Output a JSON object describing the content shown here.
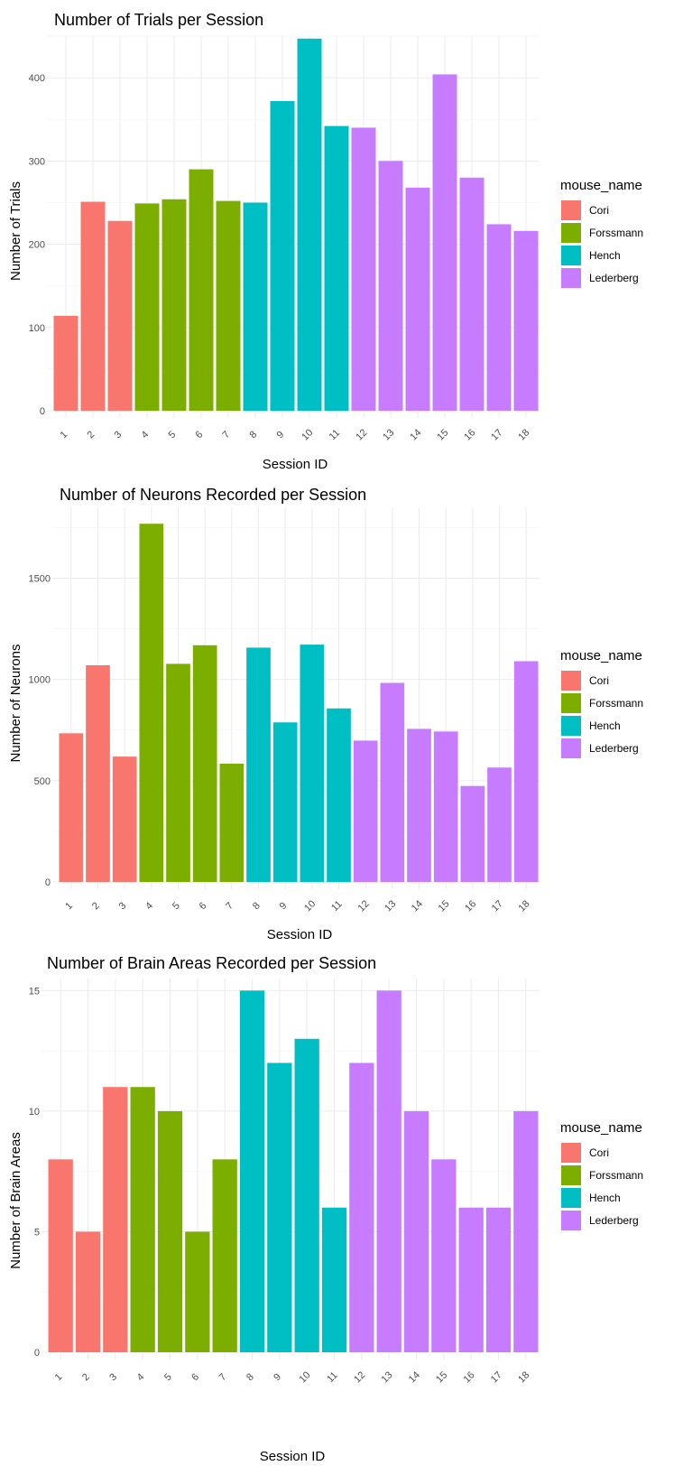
{
  "chart_data": [
    {
      "type": "bar",
      "title": "Number of Trials per Session",
      "xlabel": "Session ID",
      "ylabel": "Number of Trials",
      "categories": [
        "1",
        "2",
        "3",
        "4",
        "5",
        "6",
        "7",
        "8",
        "9",
        "10",
        "11",
        "12",
        "13",
        "14",
        "15",
        "16",
        "17",
        "18"
      ],
      "values": [
        114,
        251,
        228,
        249,
        254,
        290,
        252,
        250,
        372,
        447,
        342,
        340,
        300,
        268,
        404,
        280,
        224,
        216
      ],
      "groups": [
        "Cori",
        "Cori",
        "Cori",
        "Forssmann",
        "Forssmann",
        "Forssmann",
        "Forssmann",
        "Hench",
        "Hench",
        "Hench",
        "Hench",
        "Lederberg",
        "Lederberg",
        "Lederberg",
        "Lederberg",
        "Lederberg",
        "Lederberg",
        "Lederberg"
      ],
      "ylim": [
        0,
        450
      ],
      "yticks": [
        0,
        100,
        200,
        300,
        400
      ],
      "grid": true,
      "legend": {
        "title": "mouse_name",
        "position": "right",
        "entries": [
          {
            "name": "Cori",
            "color": "#F8766D"
          },
          {
            "name": "Forssmann",
            "color": "#7CAE00"
          },
          {
            "name": "Hench",
            "color": "#00BFC4"
          },
          {
            "name": "Lederberg",
            "color": "#C77CFF"
          }
        ]
      }
    },
    {
      "type": "bar",
      "title": "Number of Neurons Recorded per Session",
      "xlabel": "Session ID",
      "ylabel": "Number of Neurons",
      "categories": [
        "1",
        "2",
        "3",
        "4",
        "5",
        "6",
        "7",
        "8",
        "9",
        "10",
        "11",
        "12",
        "13",
        "14",
        "15",
        "16",
        "17",
        "18"
      ],
      "values": [
        734,
        1070,
        619,
        1769,
        1077,
        1169,
        584,
        1157,
        788,
        1172,
        857,
        698,
        983,
        756,
        743,
        474,
        565,
        1090
      ],
      "groups": [
        "Cori",
        "Cori",
        "Cori",
        "Forssmann",
        "Forssmann",
        "Forssmann",
        "Forssmann",
        "Hench",
        "Hench",
        "Hench",
        "Hench",
        "Lederberg",
        "Lederberg",
        "Lederberg",
        "Lederberg",
        "Lederberg",
        "Lederberg",
        "Lederberg"
      ],
      "ylim": [
        0,
        1850
      ],
      "yticks": [
        0,
        500,
        1000,
        1500
      ],
      "grid": true,
      "legend": {
        "title": "mouse_name",
        "position": "right",
        "entries": [
          {
            "name": "Cori",
            "color": "#F8766D"
          },
          {
            "name": "Forssmann",
            "color": "#7CAE00"
          },
          {
            "name": "Hench",
            "color": "#00BFC4"
          },
          {
            "name": "Lederberg",
            "color": "#C77CFF"
          }
        ]
      }
    },
    {
      "type": "bar",
      "title": "Number of Brain Areas Recorded per Session",
      "xlabel": "Session ID",
      "ylabel": "Number of Brain Areas",
      "categories": [
        "1",
        "2",
        "3",
        "4",
        "5",
        "6",
        "7",
        "8",
        "9",
        "10",
        "11",
        "12",
        "13",
        "14",
        "15",
        "16",
        "17",
        "18"
      ],
      "values": [
        8,
        5,
        11,
        11,
        10,
        5,
        8,
        15,
        12,
        13,
        6,
        12,
        15,
        10,
        8,
        6,
        6,
        10
      ],
      "groups": [
        "Cori",
        "Cori",
        "Cori",
        "Forssmann",
        "Forssmann",
        "Forssmann",
        "Forssmann",
        "Hench",
        "Hench",
        "Hench",
        "Hench",
        "Lederberg",
        "Lederberg",
        "Lederberg",
        "Lederberg",
        "Lederberg",
        "Lederberg",
        "Lederberg"
      ],
      "ylim": [
        0,
        15.5
      ],
      "yticks": [
        0,
        5,
        10,
        15
      ],
      "grid": true,
      "legend": {
        "title": "mouse_name",
        "position": "right",
        "entries": [
          {
            "name": "Cori",
            "color": "#F8766D"
          },
          {
            "name": "Forssmann",
            "color": "#7CAE00"
          },
          {
            "name": "Hench",
            "color": "#00BFC4"
          },
          {
            "name": "Lederberg",
            "color": "#C77CFF"
          }
        ]
      }
    }
  ]
}
